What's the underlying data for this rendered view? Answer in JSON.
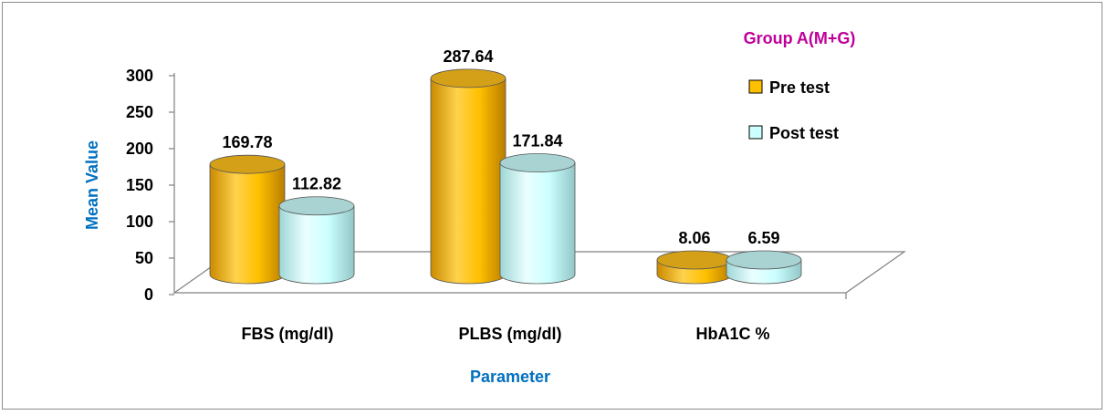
{
  "chart_data": {
    "type": "bar",
    "title": "",
    "xlabel": "Parameter",
    "ylabel": "Mean Value",
    "categories": [
      "FBS (mg/dl)",
      "PLBS (mg/dl)",
      "HbA1C %"
    ],
    "series": [
      {
        "name": "Pre test",
        "values": [
          169.78,
          287.64,
          8.06
        ],
        "color": "#ffc000"
      },
      {
        "name": "Post test",
        "values": [
          112.82,
          171.84,
          6.59
        ],
        "color": "#ccffff"
      }
    ],
    "data_labels": [
      [
        "169.78",
        "287.64",
        "8.06"
      ],
      [
        "112.82",
        "171.84",
        "6.59"
      ]
    ],
    "ylim": [
      0,
      300
    ],
    "yticks": [
      0,
      50,
      100,
      150,
      200,
      250,
      300
    ],
    "legend": {
      "title": "Group A(M+G)",
      "position": "top-right"
    },
    "grid": false,
    "colors": {
      "axis_title": "#0070c0",
      "legend_title": "#c00099",
      "axis_line": "#808080"
    }
  }
}
